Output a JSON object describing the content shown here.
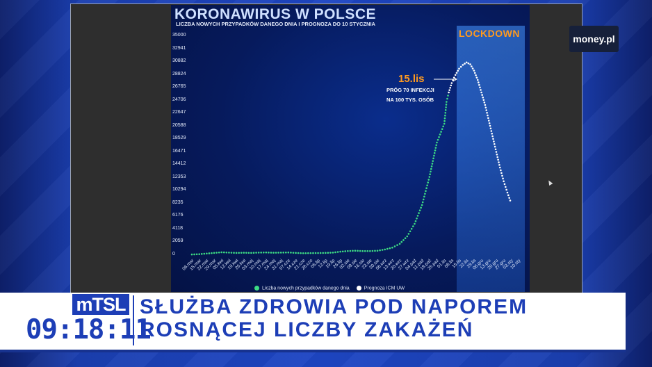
{
  "slide": {
    "title": "KORONAWIRUS W POLSCE",
    "subtitle": "LICZBA NOWYCH PRZYPADKÓW DANEGO DNIA I PROGNOZA DO 10 STYCZNIA",
    "lockdown_label": "LOCKDOWN",
    "annotation": {
      "date": "15.lis",
      "line1": "PRÓG 70 INFEKCJI",
      "line2": "NA 100 TYS. OSÓB"
    },
    "legend": {
      "series1": "Liczba nowych przypadków danego dnia",
      "series2": "Prognoza ICM UW",
      "series1_color": "#3ddc84",
      "series2_color": "#ffffff"
    }
  },
  "chart_data": {
    "type": "scatter",
    "y_ticks": [
      "35000",
      "32941",
      "30882",
      "28824",
      "26765",
      "24706",
      "22647",
      "20588",
      "18529",
      "16471",
      "14412",
      "12353",
      "10294",
      "8235",
      "6176",
      "4118",
      "2059",
      "0"
    ],
    "x_ticks": [
      "08.mar",
      "15.mar",
      "22.mar",
      "29.mar",
      "05.kwi",
      "12.kwi",
      "19.kwi",
      "26.kwi",
      "03.maj",
      "10.maj",
      "17.maj",
      "24.maj",
      "31.maj",
      "07.cze",
      "14.cze",
      "21.cze",
      "28.cze",
      "05.lip",
      "12.lip",
      "19.lip",
      "26.lip",
      "02.sie",
      "09.sie",
      "16.sie",
      "23.sie",
      "30.sie",
      "06.wrz",
      "13.wrz",
      "20.wrz",
      "27.wrz",
      "04.paź",
      "11.paź",
      "18.paź",
      "25.paź",
      "01.lis",
      "08.lis",
      "15.lis",
      "22.lis",
      "29.lis",
      "06.gru",
      "13.gru",
      "20.gru",
      "27.gru",
      "03.sty",
      "10.sty"
    ],
    "ylim": [
      0,
      35000
    ],
    "series": [
      {
        "name": "Liczba nowych przypadków danego dnia",
        "points": [
          [
            0,
            100
          ],
          [
            1,
            150
          ],
          [
            2,
            250
          ],
          [
            3,
            350
          ],
          [
            4,
            450
          ],
          [
            5,
            400
          ],
          [
            6,
            350
          ],
          [
            7,
            380
          ],
          [
            8,
            350
          ],
          [
            9,
            400
          ],
          [
            10,
            420
          ],
          [
            11,
            380
          ],
          [
            12,
            400
          ],
          [
            13,
            420
          ],
          [
            14,
            350
          ],
          [
            15,
            300
          ],
          [
            16,
            320
          ],
          [
            17,
            330
          ],
          [
            18,
            350
          ],
          [
            19,
            400
          ],
          [
            20,
            550
          ],
          [
            21,
            650
          ],
          [
            22,
            700
          ],
          [
            23,
            650
          ],
          [
            24,
            650
          ],
          [
            25,
            700
          ],
          [
            26,
            900
          ],
          [
            27,
            1200
          ],
          [
            28,
            1800
          ],
          [
            29,
            3000
          ],
          [
            30,
            5000
          ],
          [
            31,
            8000
          ],
          [
            32,
            12500
          ],
          [
            33,
            18000
          ],
          [
            34,
            21000
          ],
          [
            34.3,
            24500
          ],
          [
            34.6,
            26000
          ]
        ]
      },
      {
        "name": "Prognoza ICM UW",
        "points": [
          [
            34.6,
            26000
          ],
          [
            35,
            27500
          ],
          [
            35.5,
            28800
          ],
          [
            36,
            29800
          ],
          [
            36.5,
            30400
          ],
          [
            37,
            30800
          ],
          [
            37.5,
            30500
          ],
          [
            38,
            29500
          ],
          [
            38.5,
            28000
          ],
          [
            39,
            26000
          ],
          [
            39.5,
            24000
          ],
          [
            40,
            21500
          ],
          [
            40.5,
            19000
          ],
          [
            41,
            16500
          ],
          [
            41.5,
            14000
          ],
          [
            42,
            11800
          ],
          [
            42.5,
            10000
          ],
          [
            43,
            8300
          ]
        ]
      }
    ],
    "annotations": [
      "15.lis",
      "PRÓG 70 INFEKCJI",
      "NA 100 TYS. OSÓB",
      "LOCKDOWN"
    ]
  },
  "lower_third": {
    "brand": "mTSL",
    "clock": "09:18:11",
    "headline_line1": "SŁUŻBA ZDROWIA POD NAPOREM",
    "headline_line2": "ROSNĄCEJ LICZBY ZAKAŻEŃ"
  },
  "logo": {
    "text": "money.pl"
  }
}
